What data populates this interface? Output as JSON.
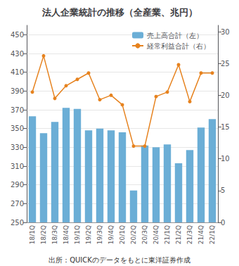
{
  "chart_data": {
    "type": "bar",
    "title": "法人企業統計の推移（全産業、兆円）",
    "categories": [
      "18/1Q",
      "18/2Q",
      "18/3Q",
      "18/4Q",
      "19/1Q",
      "19/2Q",
      "19/3Q",
      "19/4Q",
      "20/1Q",
      "20/2Q",
      "20/3Q",
      "20/4Q",
      "21/1Q",
      "21/2Q",
      "21/3Q",
      "21/4Q",
      "22/1Q"
    ],
    "series": [
      {
        "name": "売上高合計（左）",
        "type": "bar",
        "color": "#6baed6",
        "values": [
          363,
          345,
          357,
          372,
          371,
          348,
          350,
          348,
          346,
          284,
          332,
          330,
          333,
          313,
          327,
          351,
          360
        ]
      },
      {
        "name": "経常利益合計（右）",
        "type": "line",
        "color": "#e6821e",
        "marker": "circle",
        "axis": "y2",
        "values": [
          20.5,
          26.2,
          19.5,
          21.5,
          22.5,
          23.5,
          19.3,
          20.0,
          18.5,
          12.0,
          12.0,
          19.8,
          20.5,
          24.8,
          19.0,
          23.5,
          23.5
        ]
      }
    ],
    "ylim": [
      250,
      460
    ],
    "yticks": [
      250,
      270,
      290,
      310,
      330,
      350,
      370,
      390,
      410,
      430,
      450
    ],
    "y2lim": [
      0,
      31
    ],
    "y2ticks": [
      0,
      5,
      10,
      15,
      20,
      25,
      30
    ],
    "grid": true,
    "legend": "upper right",
    "annotations": [
      "出所：QUICKのデータをもとに東洋証券作成"
    ]
  }
}
